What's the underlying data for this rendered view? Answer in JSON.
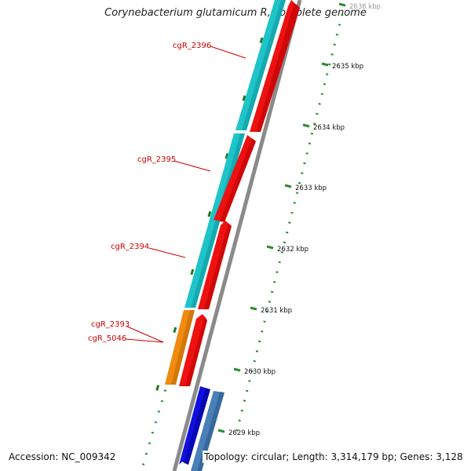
{
  "title": "Corynebacterium glutamicum R, complete genome",
  "accession_text": "Accession: NC_009342",
  "topology_text": "Topology: circular; Length: 3,314,179 bp; Genes: 3,128",
  "ticks": [
    {
      "kbp": 2636,
      "label": "2636 kbp"
    },
    {
      "kbp": 2635,
      "label": "2635 kbp"
    },
    {
      "kbp": 2634,
      "label": "2634 kbp"
    },
    {
      "kbp": 2633,
      "label": "2633 kbp"
    },
    {
      "kbp": 2632,
      "label": "2632 kbp"
    },
    {
      "kbp": 2631,
      "label": "2631 kbp"
    },
    {
      "kbp": 2630,
      "label": "2630 kbp"
    },
    {
      "kbp": 2629,
      "label": "2629 kbp"
    }
  ],
  "gene_labels": [
    "cgR_2396",
    "cgR_2395",
    "cgR_2394",
    "cgR_2393",
    "cgR_5046"
  ],
  "colors": {
    "cyan": "#1fc4c8",
    "red": "#ee1111",
    "orange": "#f08a10",
    "blue": "#1010dd",
    "steelblue": "#4a7fb8",
    "gc_green": "#2e8b2e",
    "backbone": "#8a8a8a",
    "label_red": "#cc0000"
  }
}
